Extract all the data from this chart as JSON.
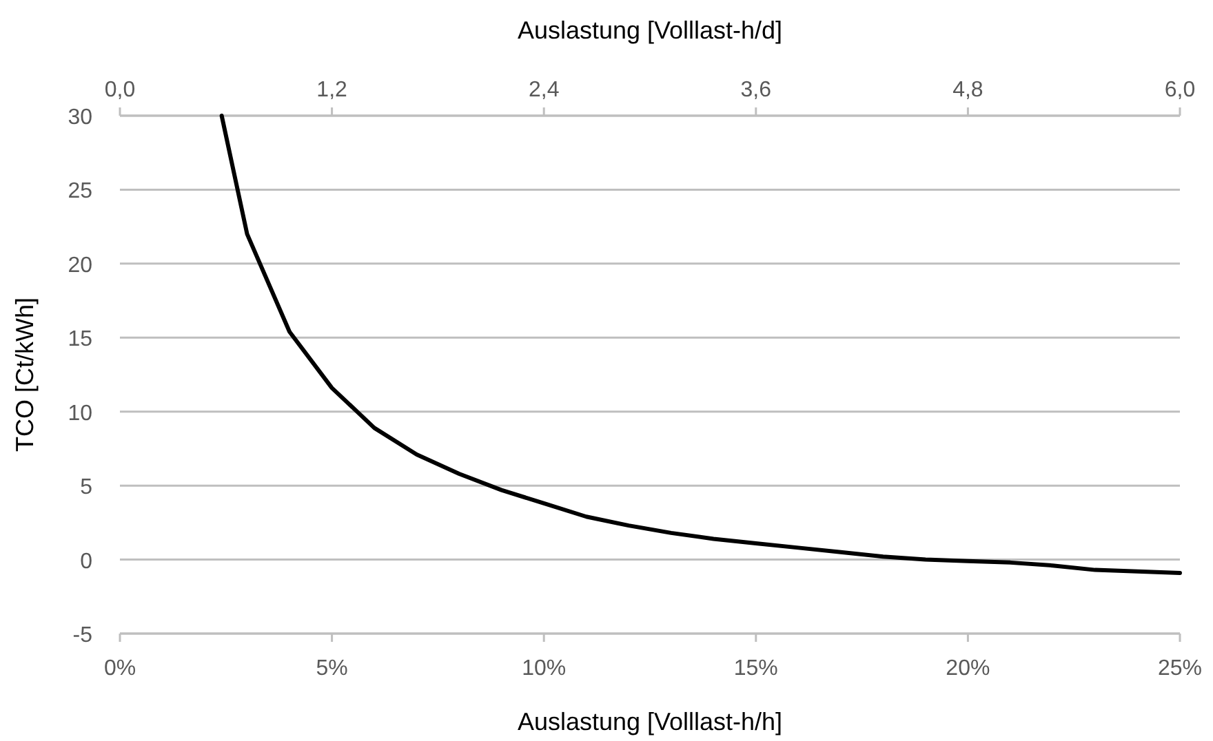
{
  "chart_data": {
    "type": "line",
    "xlabel": "Auslastung [Volllast-h/h]",
    "x2label": "Auslastung [Volllast-h/d]",
    "ylabel": "TCO [Ct/kWh]",
    "x": [
      2.4,
      3,
      4,
      5,
      6,
      7,
      8,
      9,
      10,
      11,
      12,
      13,
      14,
      15,
      16,
      17,
      18,
      19,
      20,
      21,
      22,
      23,
      24,
      25
    ],
    "series": [
      {
        "color": "#000000",
        "values": [
          30,
          22,
          15.4,
          11.6,
          8.9,
          7.1,
          5.8,
          4.7,
          3.8,
          2.9,
          2.3,
          1.8,
          1.4,
          1.1,
          0.8,
          0.5,
          0.2,
          0,
          -0.1,
          -0.2,
          -0.4,
          -0.7,
          -0.8,
          -0.9
        ]
      }
    ],
    "xlim": [
      0,
      25
    ],
    "xticks": [
      {
        "value": 0,
        "label": "0%"
      },
      {
        "value": 5,
        "label": "5%"
      },
      {
        "value": 10,
        "label": "10%"
      },
      {
        "value": 15,
        "label": "15%"
      },
      {
        "value": 20,
        "label": "20%"
      },
      {
        "value": 25,
        "label": "25%"
      }
    ],
    "x2lim": [
      0,
      6
    ],
    "x2ticks": [
      {
        "value": 0,
        "label": "0,0"
      },
      {
        "value": 1.2,
        "label": "1,2"
      },
      {
        "value": 2.4,
        "label": "2,4"
      },
      {
        "value": 3.6,
        "label": "3,6"
      },
      {
        "value": 4.8,
        "label": "4,8"
      },
      {
        "value": 6,
        "label": "6,0"
      }
    ],
    "ylim": [
      -5,
      30
    ],
    "yticks": [
      -5,
      0,
      5,
      10,
      15,
      20,
      25,
      30
    ],
    "grid": "y",
    "marker": "none",
    "line_style": "solid"
  }
}
